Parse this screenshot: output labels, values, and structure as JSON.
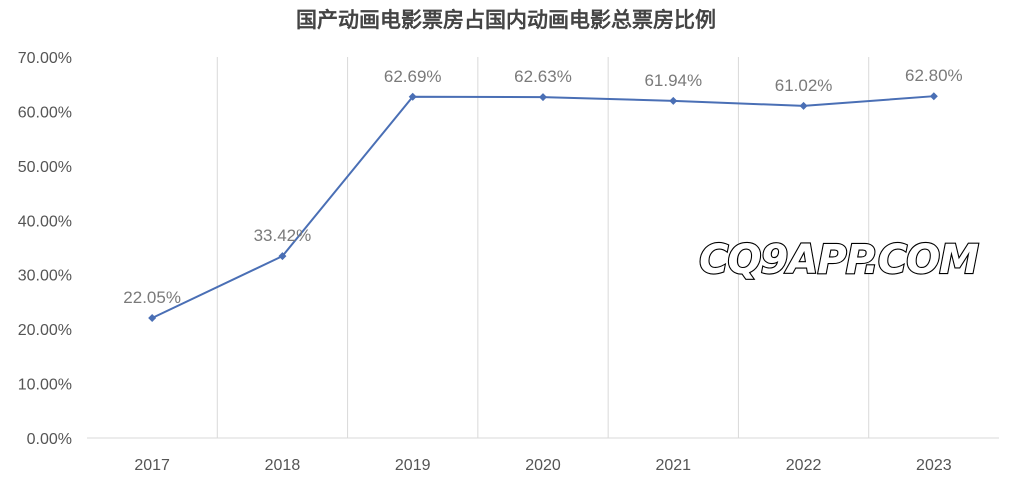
{
  "chart_data": {
    "type": "line",
    "title": "国产动画电影票房占国内动画电影总票房比例",
    "xlabel": "",
    "ylabel": "",
    "categories": [
      "2017",
      "2018",
      "2019",
      "2020",
      "2021",
      "2022",
      "2023"
    ],
    "series": [
      {
        "values": [
          22.05,
          33.42,
          62.69,
          62.63,
          61.94,
          61.02,
          62.8
        ],
        "data_labels": [
          "22.05%",
          "33.42%",
          "62.69%",
          "62.63%",
          "61.94%",
          "61.02%",
          "62.80%"
        ],
        "color": "#4a6fb5",
        "marker": "diamond"
      }
    ],
    "ylim": [
      0,
      70
    ],
    "yticks": [
      0,
      10,
      20,
      30,
      40,
      50,
      60,
      70
    ],
    "ytick_labels": [
      "0.00%",
      "10.00%",
      "20.00%",
      "30.00%",
      "40.00%",
      "50.00%",
      "60.00%",
      "70.00%"
    ],
    "grid": "vertical",
    "legend": "none"
  },
  "watermark": "CQ9APP.COM"
}
